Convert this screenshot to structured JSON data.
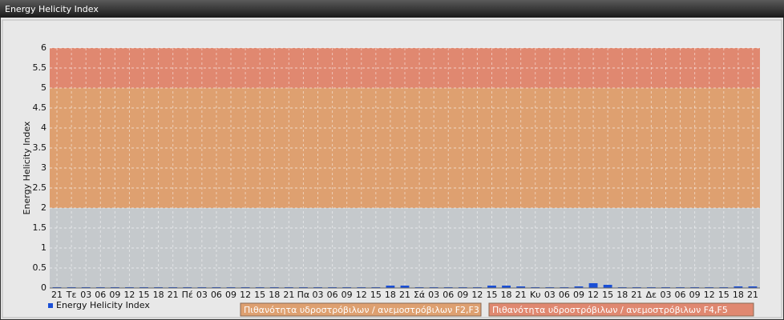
{
  "chart_data": {
    "type": "bar",
    "title": "Energy Helicity Index",
    "y_label": "Energy Helicity Index",
    "categories": [
      "21",
      "Τε",
      "03",
      "06",
      "09",
      "12",
      "15",
      "18",
      "21",
      "Πέ",
      "03",
      "06",
      "09",
      "12",
      "15",
      "18",
      "21",
      "Πα",
      "03",
      "06",
      "09",
      "12",
      "15",
      "18",
      "21",
      "Σά",
      "03",
      "06",
      "09",
      "12",
      "15",
      "18",
      "21",
      "Κυ",
      "03",
      "06",
      "09",
      "12",
      "15",
      "18",
      "21",
      "Δε",
      "03",
      "06",
      "09",
      "12",
      "15",
      "18",
      "21"
    ],
    "series": [
      {
        "name": "Energy Helicity Index",
        "color": "#1a4fd6",
        "values": [
          0.02,
          0.02,
          0.02,
          0.02,
          0.02,
          0.02,
          0.02,
          0.02,
          0.02,
          0.02,
          0.02,
          0.02,
          0.02,
          0.02,
          0.02,
          0.02,
          0.02,
          0.02,
          0.02,
          0.02,
          0.02,
          0.02,
          0.02,
          0.06,
          0.06,
          0.02,
          0.02,
          0.02,
          0.02,
          0.02,
          0.06,
          0.06,
          0.04,
          0.02,
          0.02,
          0.02,
          0.04,
          0.12,
          0.08,
          0.02,
          0.02,
          0.02,
          0.02,
          0.02,
          0.02,
          0.02,
          0.02,
          0.04,
          0.04
        ]
      }
    ],
    "ylim": [
      0,
      6
    ],
    "yticks": [
      0,
      0.5,
      1,
      1.5,
      2,
      2.5,
      3,
      3.5,
      4,
      4.5,
      5,
      5.5,
      6
    ],
    "grid": true,
    "plot_background": "#c5c9cc",
    "bands": [
      {
        "from": 2,
        "to": 5,
        "label": "Πιθανότητα υδροστρόβιλων / ανεμοστρόβιλων F2,F3",
        "color": "#dea070"
      },
      {
        "from": 5,
        "to": 6,
        "label": "Πιθανότητα υδροστρόβιλων / ανεμοστρόβιλων F4,F5",
        "color": "#e08870"
      }
    ]
  }
}
